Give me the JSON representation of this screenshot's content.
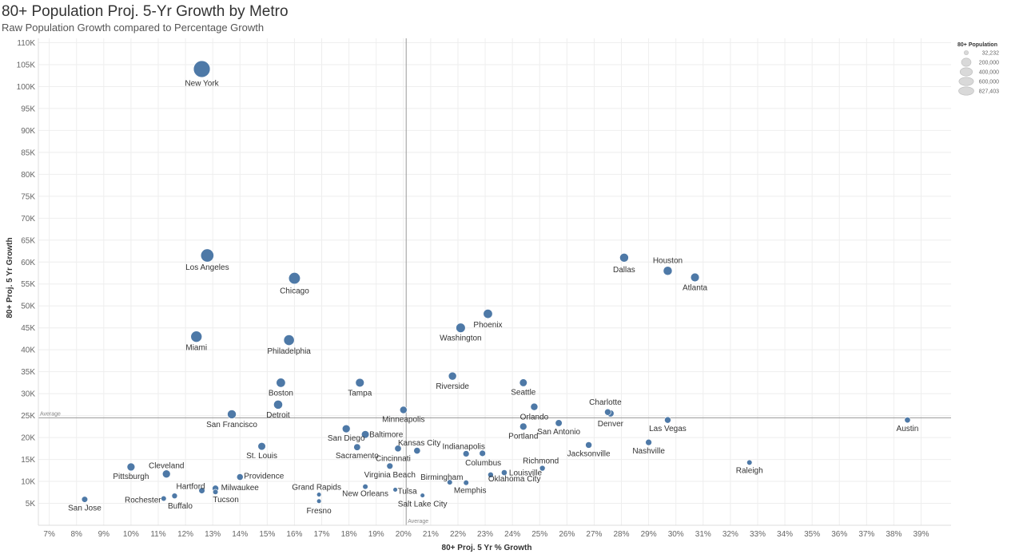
{
  "header": {
    "title": "80+ Population Proj. 5-Yr Growth by Metro",
    "subtitle": "Raw Population Growth compared to Percentage Growth"
  },
  "colors": {
    "mark": "#4e79a7",
    "grid": "#eeeeee",
    "ref_line": "#999999",
    "legend_fill": "#d9d9d9"
  },
  "chart_data": {
    "type": "scatter",
    "title": "80+ Population Proj. 5-Yr Growth by Metro",
    "subtitle": "Raw Population Growth compared to Percentage Growth",
    "xlabel": "80+ Proj. 5 Yr % Growth",
    "ylabel": "80+ Proj. 5 Yr Growth",
    "xlim": [
      6.6,
      40.1
    ],
    "ylim": [
      0,
      111000
    ],
    "x_ticks": [
      "7%",
      "8%",
      "9%",
      "10%",
      "11%",
      "12%",
      "13%",
      "14%",
      "15%",
      "16%",
      "17%",
      "18%",
      "19%",
      "20%",
      "21%",
      "22%",
      "23%",
      "24%",
      "25%",
      "26%",
      "27%",
      "28%",
      "29%",
      "30%",
      "31%",
      "32%",
      "33%",
      "34%",
      "35%",
      "36%",
      "37%",
      "38%",
      "39%"
    ],
    "x_tick_values": [
      7,
      8,
      9,
      10,
      11,
      12,
      13,
      14,
      15,
      16,
      17,
      18,
      19,
      20,
      21,
      22,
      23,
      24,
      25,
      26,
      27,
      28,
      29,
      30,
      31,
      32,
      33,
      34,
      35,
      36,
      37,
      38,
      39
    ],
    "y_ticks": [
      "5K",
      "10K",
      "15K",
      "20K",
      "25K",
      "30K",
      "35K",
      "40K",
      "45K",
      "50K",
      "55K",
      "60K",
      "65K",
      "70K",
      "75K",
      "80K",
      "85K",
      "90K",
      "95K",
      "100K",
      "105K",
      "110K"
    ],
    "y_tick_values": [
      5000,
      10000,
      15000,
      20000,
      25000,
      30000,
      35000,
      40000,
      45000,
      50000,
      55000,
      60000,
      65000,
      70000,
      75000,
      80000,
      85000,
      90000,
      95000,
      100000,
      105000,
      110000
    ],
    "reference_lines": [
      {
        "axis": "x",
        "value": 20.1,
        "label": "Average"
      },
      {
        "axis": "y",
        "value": 24500,
        "label": "Average"
      }
    ],
    "grid": true,
    "legend": {
      "title": "80+ Population",
      "placement": "top-right",
      "sizes": [
        32232,
        200000,
        400000,
        600000,
        827403
      ],
      "labels": [
        "32,232",
        "200,000",
        "400,000",
        "600,000",
        "827,403"
      ]
    },
    "points": [
      {
        "name": "New York",
        "x": 12.6,
        "y": 104000,
        "pop": 827403
      },
      {
        "name": "Los Angeles",
        "x": 12.8,
        "y": 61500,
        "pop": 450000
      },
      {
        "name": "Chicago",
        "x": 16.0,
        "y": 56300,
        "pop": 330000
      },
      {
        "name": "Miami",
        "x": 12.4,
        "y": 43000,
        "pop": 300000
      },
      {
        "name": "Philadelphia",
        "x": 15.8,
        "y": 42200,
        "pop": 260000
      },
      {
        "name": "Dallas",
        "x": 28.1,
        "y": 61000,
        "pop": 160000
      },
      {
        "name": "Houston",
        "x": 29.7,
        "y": 58000,
        "pop": 165000
      },
      {
        "name": "Atlanta",
        "x": 30.7,
        "y": 56500,
        "pop": 150000
      },
      {
        "name": "Phoenix",
        "x": 23.1,
        "y": 48200,
        "pop": 175000
      },
      {
        "name": "Washington",
        "x": 22.1,
        "y": 45000,
        "pop": 185000
      },
      {
        "name": "Boston",
        "x": 15.5,
        "y": 32500,
        "pop": 175000
      },
      {
        "name": "Tampa",
        "x": 18.4,
        "y": 32500,
        "pop": 150000
      },
      {
        "name": "Riverside",
        "x": 21.8,
        "y": 34000,
        "pop": 125000
      },
      {
        "name": "Seattle",
        "x": 24.4,
        "y": 32500,
        "pop": 110000
      },
      {
        "name": "Detroit",
        "x": 15.4,
        "y": 27500,
        "pop": 165000
      },
      {
        "name": "San Francisco",
        "x": 13.7,
        "y": 25300,
        "pop": 160000
      },
      {
        "name": "Minneapolis",
        "x": 20.0,
        "y": 26300,
        "pop": 95000
      },
      {
        "name": "Orlando",
        "x": 24.8,
        "y": 27000,
        "pop": 95000
      },
      {
        "name": "Charlotte",
        "x": 27.5,
        "y": 25800,
        "pop": 70000
      },
      {
        "name": "Denver",
        "x": 27.6,
        "y": 25500,
        "pop": 85000
      },
      {
        "name": "Las Vegas",
        "x": 29.7,
        "y": 24000,
        "pop": 70000
      },
      {
        "name": "Austin",
        "x": 38.5,
        "y": 24000,
        "pop": 55000
      },
      {
        "name": "San Antonio",
        "x": 25.7,
        "y": 23300,
        "pop": 80000
      },
      {
        "name": "Portland",
        "x": 24.4,
        "y": 22500,
        "pop": 90000
      },
      {
        "name": "San Diego",
        "x": 17.9,
        "y": 22000,
        "pop": 120000
      },
      {
        "name": "Baltimore",
        "x": 18.6,
        "y": 20700,
        "pop": 110000
      },
      {
        "name": "St. Louis",
        "x": 14.8,
        "y": 18000,
        "pop": 110000
      },
      {
        "name": "Sacramento",
        "x": 18.3,
        "y": 17800,
        "pop": 80000
      },
      {
        "name": "Kansas City",
        "x": 19.8,
        "y": 17500,
        "pop": 75000
      },
      {
        "name": "Cincinnati",
        "x": 20.5,
        "y": 17000,
        "pop": 75000
      },
      {
        "name": "Indianapolis",
        "x": 22.3,
        "y": 16300,
        "pop": 65000
      },
      {
        "name": "Columbus",
        "x": 22.9,
        "y": 16400,
        "pop": 65000
      },
      {
        "name": "Jacksonville",
        "x": 26.8,
        "y": 18300,
        "pop": 70000
      },
      {
        "name": "Nashville",
        "x": 29.0,
        "y": 18900,
        "pop": 65000
      },
      {
        "name": "Raleigh",
        "x": 32.7,
        "y": 14300,
        "pop": 45000
      },
      {
        "name": "Richmond",
        "x": 25.1,
        "y": 13000,
        "pop": 50000
      },
      {
        "name": "Louisville",
        "x": 23.7,
        "y": 12000,
        "pop": 55000
      },
      {
        "name": "Oklahoma City",
        "x": 23.2,
        "y": 11500,
        "pop": 50000
      },
      {
        "name": "Virginia Beach",
        "x": 19.5,
        "y": 13500,
        "pop": 65000
      },
      {
        "name": "Birmingham",
        "x": 21.7,
        "y": 9800,
        "pop": 45000
      },
      {
        "name": "Memphis",
        "x": 22.3,
        "y": 9700,
        "pop": 45000
      },
      {
        "name": "Cleveland",
        "x": 11.3,
        "y": 11700,
        "pop": 120000
      },
      {
        "name": "Pittsburgh",
        "x": 10.0,
        "y": 13300,
        "pop": 120000
      },
      {
        "name": "Providence",
        "x": 14.0,
        "y": 11000,
        "pop": 70000
      },
      {
        "name": "Hartford",
        "x": 12.6,
        "y": 7900,
        "pop": 60000
      },
      {
        "name": "Milwaukee",
        "x": 13.1,
        "y": 8400,
        "pop": 70000
      },
      {
        "name": "Tucson",
        "x": 13.1,
        "y": 7600,
        "pop": 45000
      },
      {
        "name": "Rochester",
        "x": 11.2,
        "y": 6100,
        "pop": 45000
      },
      {
        "name": "Buffalo",
        "x": 11.6,
        "y": 6700,
        "pop": 50000
      },
      {
        "name": "San Jose",
        "x": 8.3,
        "y": 5900,
        "pop": 60000
      },
      {
        "name": "Grand Rapids",
        "x": 16.9,
        "y": 7000,
        "pop": 35000
      },
      {
        "name": "Fresno",
        "x": 16.9,
        "y": 5500,
        "pop": 35000
      },
      {
        "name": "New Orleans",
        "x": 18.6,
        "y": 8800,
        "pop": 45000
      },
      {
        "name": "Tulsa",
        "x": 19.7,
        "y": 8100,
        "pop": 35000
      },
      {
        "name": "Salt Lake City",
        "x": 20.7,
        "y": 6800,
        "pop": 35000
      }
    ]
  }
}
